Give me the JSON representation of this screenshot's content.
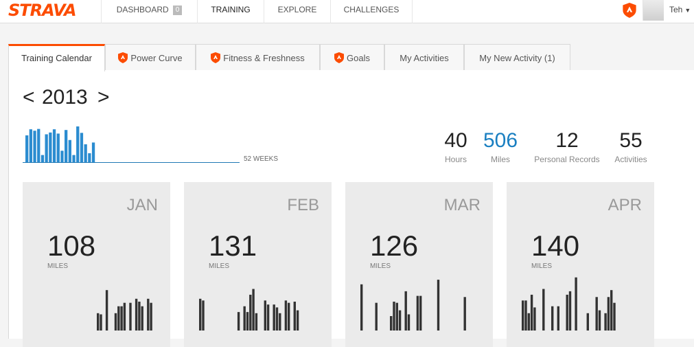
{
  "nav": {
    "logo": "STRAVA",
    "items": [
      {
        "label": "DASHBOARD",
        "badge": "0"
      },
      {
        "label": "TRAINING"
      },
      {
        "label": "EXPLORE"
      },
      {
        "label": "CHALLENGES"
      }
    ],
    "user": "Teh"
  },
  "tabs": [
    {
      "label": "Training Calendar",
      "premium": false,
      "active": true
    },
    {
      "label": "Power Curve",
      "premium": true
    },
    {
      "label": "Fitness & Freshness",
      "premium": true
    },
    {
      "label": "Goals",
      "premium": true
    },
    {
      "label": "My Activities",
      "premium": false
    },
    {
      "label": "My New Activity (1)",
      "premium": false
    }
  ],
  "year": {
    "prev": "<",
    "label": "2013",
    "next": ">"
  },
  "weekly_chart": {
    "caption": "52 WEEKS",
    "weeks_total": 52,
    "values": [
      0.75,
      0.92,
      0.88,
      0.93,
      0.2,
      0.78,
      0.83,
      0.92,
      0.8,
      0.32,
      0.9,
      0.62,
      0.2,
      1.0,
      0.82,
      0.5,
      0.25,
      0.55
    ]
  },
  "stats": [
    {
      "value": "40",
      "label": "Hours",
      "accent": false
    },
    {
      "value": "506",
      "label": "Miles",
      "accent": true
    },
    {
      "value": "12",
      "label": "Personal Records",
      "accent": false
    },
    {
      "value": "55",
      "label": "Activities",
      "accent": false
    }
  ],
  "months": [
    {
      "name": "JAN",
      "miles": "108",
      "unit": "MILES",
      "days": [
        0,
        0,
        0,
        0,
        0,
        0,
        0,
        0,
        0,
        0,
        0,
        0,
        0,
        0,
        0,
        0,
        0,
        0,
        0,
        0,
        0.3,
        0.28,
        0,
        0.7,
        0,
        0,
        0.3,
        0.42,
        0.42,
        0.48,
        0,
        0.48,
        0,
        0.55,
        0.5,
        0.42,
        0,
        0.55,
        0.48
      ]
    },
    {
      "name": "FEB",
      "miles": "131",
      "unit": "MILES",
      "days": [
        0.55,
        0.52,
        0,
        0,
        0,
        0,
        0,
        0,
        0,
        0,
        0,
        0,
        0,
        0.32,
        0,
        0.42,
        0.32,
        0.62,
        0.72,
        0.3,
        0,
        0,
        0.52,
        0.45,
        0,
        0.45,
        0.4,
        0.3,
        0,
        0.52,
        0.48,
        0,
        0.5,
        0.35
      ]
    },
    {
      "name": "MAR",
      "miles": "126",
      "unit": "MILES",
      "days": [
        0.8,
        0,
        0,
        0,
        0,
        0.48,
        0,
        0,
        0,
        0,
        0.25,
        0.5,
        0.48,
        0.35,
        0,
        0.68,
        0.28,
        0,
        0,
        0.6,
        0.6,
        0,
        0,
        0,
        0,
        0,
        0.88,
        0,
        0,
        0,
        0,
        0,
        0,
        0,
        0,
        0.58
      ]
    },
    {
      "name": "APR",
      "miles": "140",
      "unit": "MILES",
      "days": [
        0.52,
        0.52,
        0.3,
        0.62,
        0.4,
        0,
        0,
        0.72,
        0,
        0,
        0.42,
        0,
        0.42,
        0,
        0,
        0.62,
        0.68,
        0,
        0.92,
        0,
        0,
        0,
        0.3,
        0,
        0,
        0.58,
        0.35,
        0,
        0.3,
        0.58,
        0.7,
        0.48
      ]
    }
  ],
  "colors": {
    "brand": "#fc4c02",
    "accent": "#1a7fc1",
    "bar": "#333333",
    "spark": "#2b8cd0"
  }
}
